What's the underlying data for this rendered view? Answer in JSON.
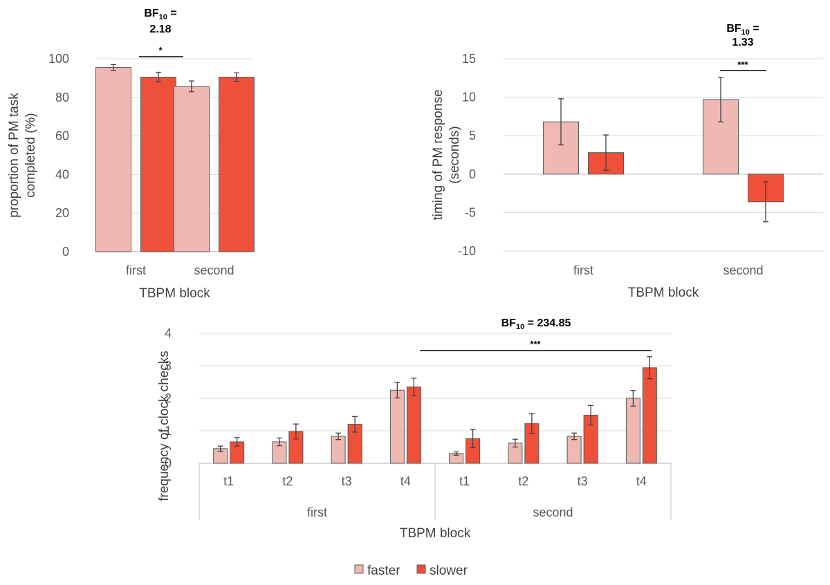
{
  "colors": {
    "faster": "#eeb8b3",
    "slower": "#ef5039",
    "bar_stroke": "#595959",
    "axis": "#bfbfbf"
  },
  "legend": {
    "faster": "faster",
    "slower": "slower"
  },
  "chart_data": [
    {
      "type": "bar",
      "ylabel_lines": [
        "proportion of PM task",
        "completed (%)"
      ],
      "xlabel": "TBPM block",
      "ylim": [
        0,
        100
      ],
      "yticks": [
        0,
        20,
        40,
        60,
        80,
        100
      ],
      "ytick_labels": [
        "0",
        "20",
        "40",
        "60",
        "80",
        "100"
      ],
      "categories": [
        "first",
        "second"
      ],
      "series": [
        {
          "name": "faster",
          "values": [
            95.5,
            85.7
          ],
          "err": [
            1.5,
            2.8
          ]
        },
        {
          "name": "slower",
          "values": [
            90.5,
            90.5
          ],
          "err": [
            2.5,
            2.2
          ]
        }
      ],
      "annotation": {
        "bf_prefix": "BF",
        "bf_sub": "10",
        "bf_suffix": " =",
        "bf_value": "2.18",
        "sig": "*"
      }
    },
    {
      "type": "bar",
      "ylabel_lines": [
        "timing of PM response",
        "(seconds)"
      ],
      "xlabel": "TBPM block",
      "ylim": [
        -10,
        15
      ],
      "yticks": [
        -10,
        -5,
        0,
        5,
        10,
        15
      ],
      "ytick_labels": [
        "-10",
        "-5",
        "0",
        "5",
        "10",
        "15"
      ],
      "categories": [
        "first",
        "second"
      ],
      "series": [
        {
          "name": "faster",
          "values": [
            6.8,
            9.7
          ],
          "err": [
            3.0,
            2.9
          ]
        },
        {
          "name": "slower",
          "values": [
            2.8,
            -3.6
          ],
          "err": [
            2.3,
            2.6
          ]
        }
      ],
      "annotation": {
        "bf_prefix": "BF",
        "bf_sub": "10",
        "bf_suffix": " =",
        "bf_value": "1.33",
        "sig": "***"
      }
    },
    {
      "type": "bar",
      "ylabel": "frequency of clock checks",
      "xlabel": "TBPM block",
      "ylim": [
        0,
        4
      ],
      "yticks": [
        0,
        1,
        2,
        3,
        4
      ],
      "ytick_labels": [
        "0",
        "1",
        "2",
        "3",
        "4"
      ],
      "groups": [
        "first",
        "second"
      ],
      "categories": [
        "t1",
        "t2",
        "t3",
        "t4",
        "t1",
        "t2",
        "t3",
        "t4"
      ],
      "series": [
        {
          "name": "faster",
          "values": [
            0.45,
            0.66,
            0.83,
            2.25,
            0.3,
            0.62,
            0.83,
            2.0
          ],
          "err": [
            0.08,
            0.12,
            0.1,
            0.24,
            0.05,
            0.12,
            0.1,
            0.24
          ]
        },
        {
          "name": "slower",
          "values": [
            0.66,
            0.98,
            1.2,
            2.35,
            0.76,
            1.22,
            1.48,
            2.94
          ],
          "err": [
            0.13,
            0.23,
            0.24,
            0.27,
            0.28,
            0.31,
            0.3,
            0.34
          ]
        }
      ],
      "annotation": {
        "bf_prefix": "BF",
        "bf_sub": "10",
        "bf_suffix": " = 234.85",
        "sig": "***"
      }
    }
  ]
}
